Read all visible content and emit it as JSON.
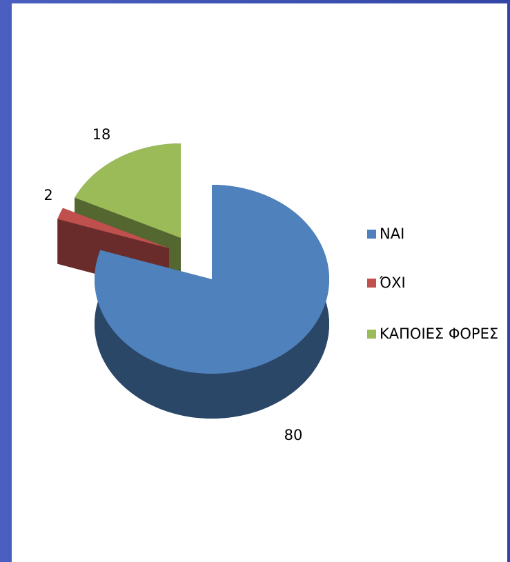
{
  "chart_data": {
    "type": "pie3d",
    "categories": [
      "ΝΑΙ",
      "ΌΧΙ",
      "ΚΑΠΟΙΕΣ ΦΟΡΕΣ"
    ],
    "values": [
      80,
      2,
      18
    ],
    "colors": [
      "#4f81bd",
      "#c0504d",
      "#9bbb59"
    ],
    "legend": "right"
  }
}
